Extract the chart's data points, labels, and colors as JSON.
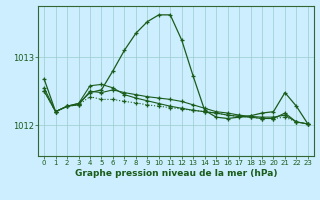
{
  "background_color": "#cceeff",
  "grid_color": "#99cccc",
  "line_color": "#1a5c1a",
  "spine_color": "#336633",
  "title": "Graphe pression niveau de la mer (hPa)",
  "title_fontsize": 6.5,
  "xlim": [
    -0.5,
    23.5
  ],
  "ylim": [
    1011.55,
    1013.75
  ],
  "yticks": [
    1012,
    1013
  ],
  "xticks": [
    0,
    1,
    2,
    3,
    4,
    5,
    6,
    7,
    8,
    9,
    10,
    11,
    12,
    13,
    14,
    15,
    16,
    17,
    18,
    19,
    20,
    21,
    22,
    23
  ],
  "series": [
    {
      "x": [
        0,
        1,
        2,
        3,
        4,
        5,
        6,
        7,
        8,
        9,
        10,
        11,
        12,
        13,
        14,
        15,
        16,
        17,
        18,
        19,
        20,
        21,
        22,
        23
      ],
      "y": [
        1012.5,
        1012.2,
        1012.28,
        1012.3,
        1012.42,
        1012.38,
        1012.38,
        1012.35,
        1012.33,
        1012.3,
        1012.28,
        1012.26,
        1012.24,
        1012.22,
        1012.2,
        1012.18,
        1012.15,
        1012.13,
        1012.12,
        1012.1,
        1012.1,
        1012.12,
        1012.05,
        1012.02
      ],
      "linestyle": "dotted",
      "marker": "+",
      "markersize": 3,
      "linewidth": 0.8
    },
    {
      "x": [
        0,
        1,
        2,
        3,
        4,
        5,
        6,
        7,
        8,
        9,
        10,
        11,
        12,
        13,
        14,
        15,
        16,
        17,
        18,
        19,
        20,
        21,
        22,
        23
      ],
      "y": [
        1012.5,
        1012.2,
        1012.28,
        1012.3,
        1012.5,
        1012.48,
        1012.52,
        1012.48,
        1012.45,
        1012.42,
        1012.4,
        1012.38,
        1012.35,
        1012.3,
        1012.25,
        1012.2,
        1012.18,
        1012.15,
        1012.13,
        1012.12,
        1012.12,
        1012.15,
        1012.05,
        1012.02
      ],
      "linestyle": "solid",
      "marker": "+",
      "markersize": 3,
      "linewidth": 0.8
    },
    {
      "x": [
        0,
        1,
        2,
        3,
        4,
        5,
        6,
        7,
        8,
        9,
        10,
        11,
        12,
        13,
        14,
        15,
        16,
        17,
        18,
        19,
        20,
        21,
        22,
        23
      ],
      "y": [
        1012.55,
        1012.2,
        1012.28,
        1012.32,
        1012.58,
        1012.6,
        1012.55,
        1012.45,
        1012.4,
        1012.36,
        1012.32,
        1012.28,
        1012.25,
        1012.22,
        1012.2,
        1012.18,
        1012.15,
        1012.13,
        1012.12,
        1012.1,
        1012.1,
        1012.18,
        1012.05,
        1012.02
      ],
      "linestyle": "solid",
      "marker": "+",
      "markersize": 3,
      "linewidth": 0.8
    },
    {
      "x": [
        0,
        1,
        2,
        3,
        4,
        5,
        6,
        7,
        8,
        9,
        10,
        11,
        12,
        13,
        14,
        15,
        16,
        17,
        18,
        19,
        20,
        21,
        22,
        23
      ],
      "y": [
        1012.68,
        1012.2,
        1012.28,
        1012.32,
        1012.48,
        1012.52,
        1012.8,
        1013.1,
        1013.35,
        1013.52,
        1013.62,
        1013.62,
        1013.25,
        1012.72,
        1012.22,
        1012.12,
        1012.1,
        1012.12,
        1012.14,
        1012.18,
        1012.2,
        1012.48,
        1012.28,
        1012.02
      ],
      "linestyle": "solid",
      "marker": "+",
      "markersize": 3,
      "linewidth": 0.9
    }
  ]
}
